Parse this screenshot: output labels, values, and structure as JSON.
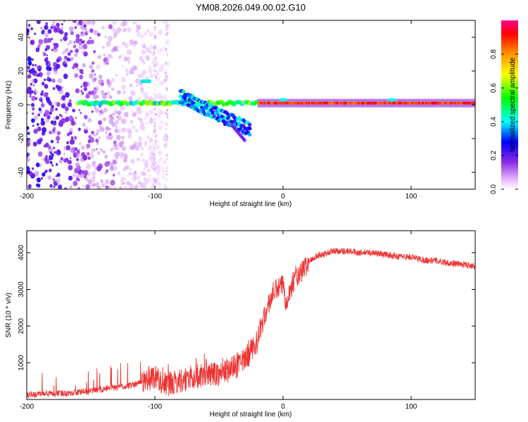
{
  "title": "YM08.2026.049.00.02.G10",
  "chart_data": [
    {
      "type": "heatmap",
      "title": "YM08.2026.049.00.02.G10",
      "xlabel": "Height of straight line (km)",
      "ylabel": "Frequency (Hz)",
      "xlim": [
        -200,
        150
      ],
      "ylim": [
        -50,
        50
      ],
      "xticks": [
        -200,
        -100,
        0,
        100
      ],
      "yticks": [
        -40,
        -20,
        0,
        20,
        40
      ],
      "colorbar": {
        "label": "Normalized spectral amplitude",
        "range": [
          0,
          1
        ],
        "ticks": [
          0,
          0.2,
          0.4,
          0.6,
          0.8
        ]
      },
      "features": [
        {
          "name": "main-carrier-track",
          "x": [
            -160,
            150
          ],
          "freq_hz": 1,
          "amplitude": 0.6
        },
        {
          "name": "upper-branch",
          "x": [
            -110,
            -104
          ],
          "freq_hz": 14,
          "amplitude": 0.4
        },
        {
          "name": "descending-branch",
          "x": [
            -80,
            -25
          ],
          "freq_hz_start": 8,
          "freq_hz_end": -12,
          "amplitude": 0.35
        },
        {
          "name": "high-amplitude-band",
          "x": [
            -20,
            150
          ],
          "freq_hz": 1,
          "amplitude": 0.95
        },
        {
          "name": "noise-region",
          "x": [
            -200,
            -120
          ],
          "freq_hz_range": [
            -50,
            50
          ],
          "amplitude": 0.15
        }
      ]
    },
    {
      "type": "line",
      "xlabel": "Height of straight line (km)",
      "ylabel": "SNR (10 * v/v)",
      "xlim": [
        -200,
        150
      ],
      "ylim": [
        0,
        4600
      ],
      "xticks": [
        -200,
        -100,
        0,
        100
      ],
      "yticks": [
        1000,
        2000,
        3000,
        4000
      ],
      "series": [
        {
          "name": "SNR",
          "color": "#ee3333",
          "x": [
            -200,
            -190,
            -180,
            -170,
            -160,
            -150,
            -140,
            -130,
            -120,
            -110,
            -105,
            -100,
            -95,
            -90,
            -85,
            -80,
            -75,
            -70,
            -65,
            -60,
            -55,
            -50,
            -45,
            -40,
            -35,
            -30,
            -25,
            -20,
            -18,
            -15,
            -12,
            -10,
            -8,
            -5,
            -2,
            0,
            2,
            5,
            8,
            10,
            12,
            15,
            20,
            25,
            30,
            40,
            50,
            60,
            70,
            80,
            90,
            100,
            110,
            120,
            130,
            140,
            150
          ],
          "values": [
            120,
            150,
            160,
            170,
            200,
            230,
            280,
            330,
            380,
            480,
            560,
            640,
            480,
            400,
            450,
            520,
            560,
            600,
            620,
            680,
            720,
            700,
            760,
            860,
            920,
            1050,
            1300,
            1600,
            1900,
            2200,
            2500,
            2700,
            2900,
            3000,
            3050,
            3150,
            2700,
            2900,
            3200,
            3400,
            3300,
            3500,
            3750,
            3900,
            3950,
            4050,
            4050,
            4000,
            4000,
            3950,
            3900,
            3880,
            3800,
            3780,
            3720,
            3680,
            3650
          ]
        }
      ]
    }
  ]
}
